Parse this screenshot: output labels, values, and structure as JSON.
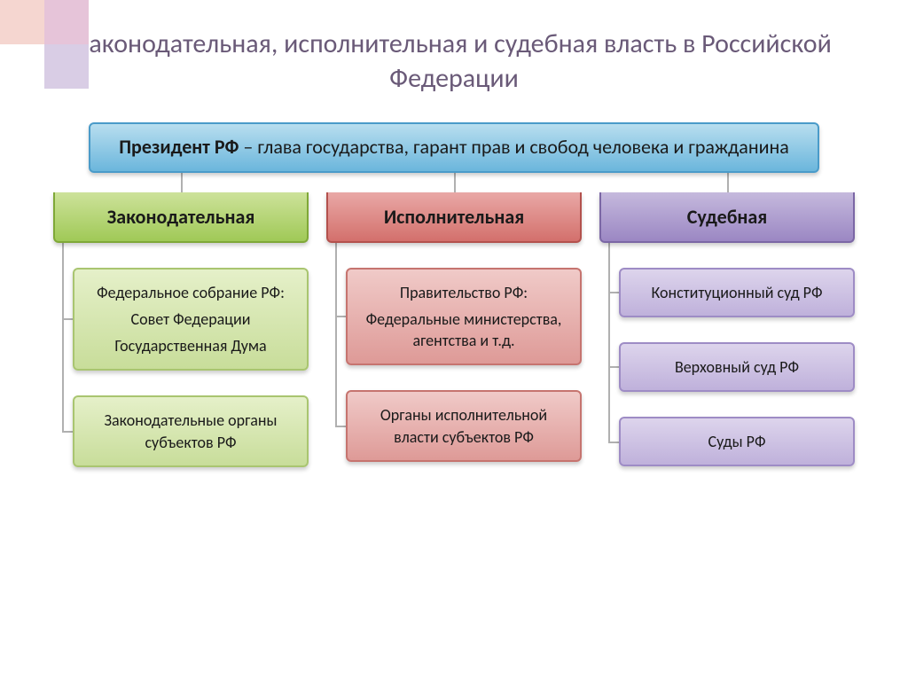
{
  "decoration": {
    "sq1_color": "#f5d6d0",
    "sq2_color": "#e6c4d9",
    "sq3_color": "#d9cde5"
  },
  "title": "Законодательная, исполнительная и судебная власть в Российской Федерации",
  "title_color": "#6a5a78",
  "president": {
    "bold": "Президент РФ",
    "text": " – глава государства, гарант прав и свобод человека и гражданина",
    "bg_top": "#b8deef",
    "bg_bottom": "#6bb6dc",
    "border": "#4a9bc9",
    "text_color": "#1a1a1a"
  },
  "connector_color": "#b0b0b0",
  "branches": [
    {
      "label": "Законодательная",
      "header_bg_top": "#cde29a",
      "header_bg_bottom": "#a0c957",
      "header_border": "#7fa838",
      "header_text": "#1a1a1a",
      "sub_bg_top": "#e5f0c9",
      "sub_bg_bottom": "#c8dd9a",
      "sub_border": "#a9c570",
      "sub_text": "#1a1a1a",
      "items": [
        {
          "lines": [
            "Федеральное собрание РФ:",
            "Совет Федерации",
            "Государственная Дума"
          ]
        },
        {
          "lines": [
            "Законодательные органы субъектов РФ"
          ]
        }
      ]
    },
    {
      "label": "Исполнительная",
      "header_bg_top": "#e9a8a6",
      "header_bg_bottom": "#d3706c",
      "header_border": "#b3514d",
      "header_text": "#1a1a1a",
      "sub_bg_top": "#f0cac8",
      "sub_bg_bottom": "#de9a97",
      "sub_border": "#c6746f",
      "sub_text": "#1a1a1a",
      "items": [
        {
          "lines": [
            "Правительство РФ:",
            "Федеральные министерства, агентства и т.д."
          ]
        },
        {
          "lines": [
            "Органы исполнительной власти субъектов РФ"
          ]
        }
      ]
    },
    {
      "label": "Судебная",
      "header_bg_top": "#c5b9dd",
      "header_bg_bottom": "#9b87c3",
      "header_border": "#7b67a5",
      "header_text": "#1a1a1a",
      "sub_bg_top": "#ddd4ec",
      "sub_bg_bottom": "#bfb1db",
      "sub_border": "#9e8cc5",
      "sub_text": "#1a1a1a",
      "items": [
        {
          "lines": [
            "Конституционный суд РФ"
          ]
        },
        {
          "lines": [
            "Верховный суд РФ"
          ]
        },
        {
          "lines": [
            "Суды РФ"
          ]
        }
      ]
    }
  ]
}
